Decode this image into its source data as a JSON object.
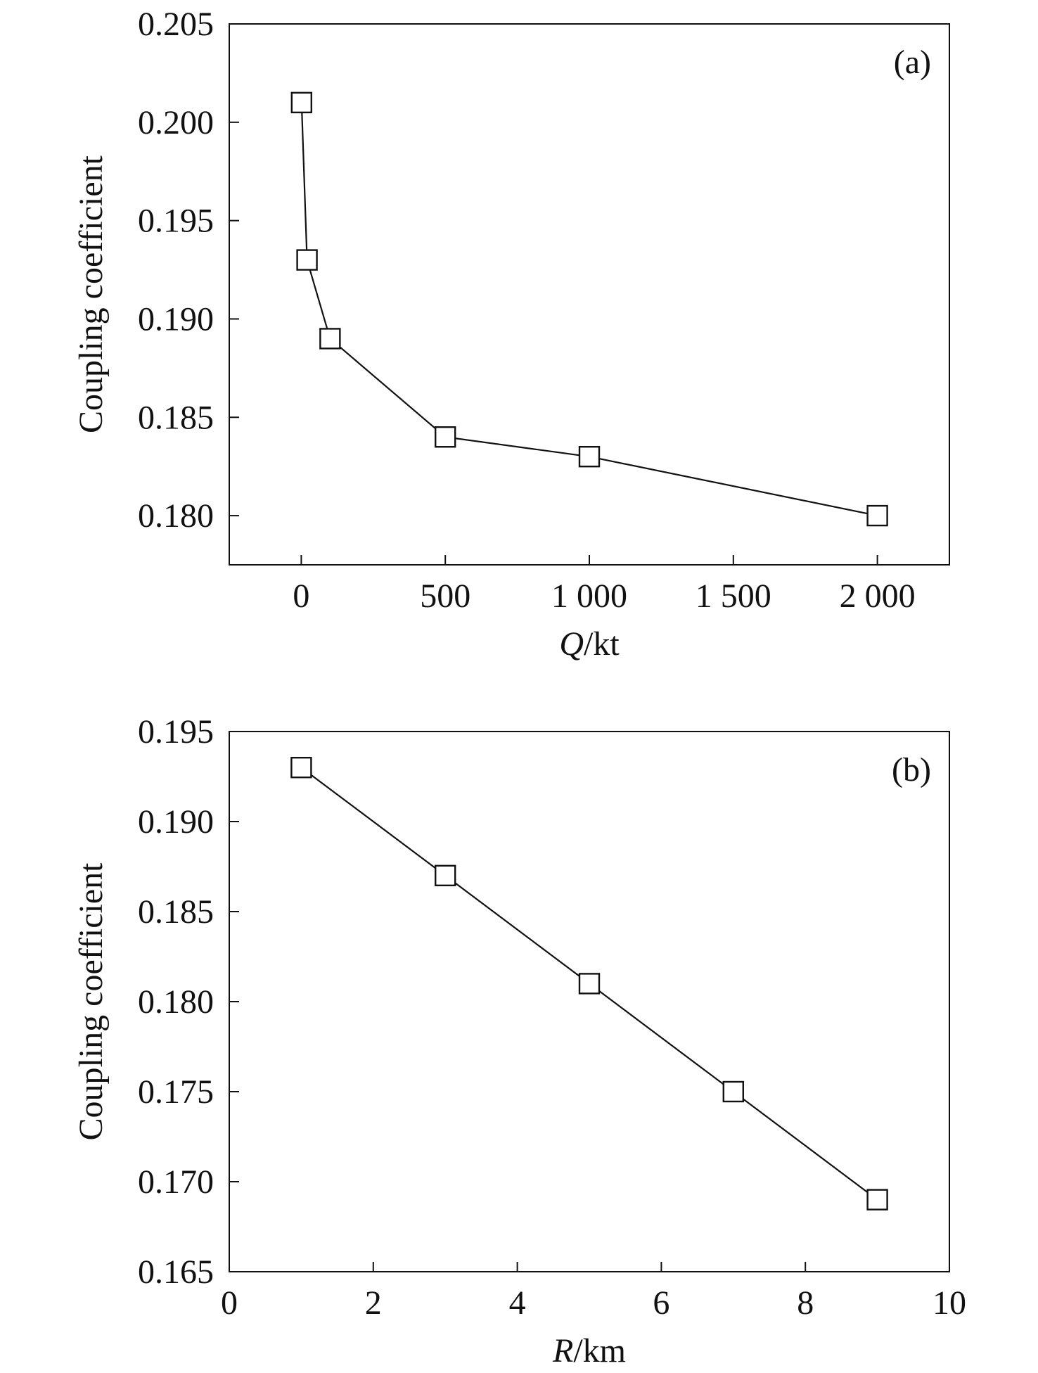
{
  "chart_data": [
    {
      "type": "line",
      "panel_label": "(a)",
      "xlabel": {
        "var": "Q",
        "unit": "/kt"
      },
      "ylabel": "Coupling coefficient",
      "xlim": [
        -250,
        2250
      ],
      "ylim": [
        0.1775,
        0.205
      ],
      "xticks": [
        0,
        500,
        1000,
        1500,
        2000
      ],
      "xtick_labels": [
        "0",
        "500",
        "1 000",
        "1 500",
        "2 000"
      ],
      "yticks": [
        0.18,
        0.185,
        0.19,
        0.195,
        0.2,
        0.205
      ],
      "ytick_labels": [
        "0.180",
        "0.185",
        "0.190",
        "0.195",
        "0.200",
        "0.205"
      ],
      "grid": false,
      "marker": "open-square",
      "series": [
        {
          "x": [
            1,
            20,
            100,
            500,
            1000,
            2000
          ],
          "y": [
            0.201,
            0.193,
            0.189,
            0.184,
            0.183,
            0.18
          ]
        }
      ]
    },
    {
      "type": "line",
      "panel_label": "(b)",
      "xlabel": {
        "var": "R",
        "unit": "/km"
      },
      "ylabel": "Coupling coefficient",
      "xlim": [
        0,
        10
      ],
      "ylim": [
        0.165,
        0.195
      ],
      "xticks": [
        0,
        2,
        4,
        6,
        8,
        10
      ],
      "xtick_labels": [
        "0",
        "2",
        "4",
        "6",
        "8",
        "10"
      ],
      "yticks": [
        0.165,
        0.17,
        0.175,
        0.18,
        0.185,
        0.19,
        0.195
      ],
      "ytick_labels": [
        "0.165",
        "0.170",
        "0.175",
        "0.180",
        "0.185",
        "0.190",
        "0.195"
      ],
      "grid": false,
      "marker": "open-square",
      "series": [
        {
          "x": [
            1,
            3,
            5,
            7,
            9
          ],
          "y": [
            0.193,
            0.187,
            0.181,
            0.175,
            0.169
          ]
        }
      ]
    }
  ]
}
